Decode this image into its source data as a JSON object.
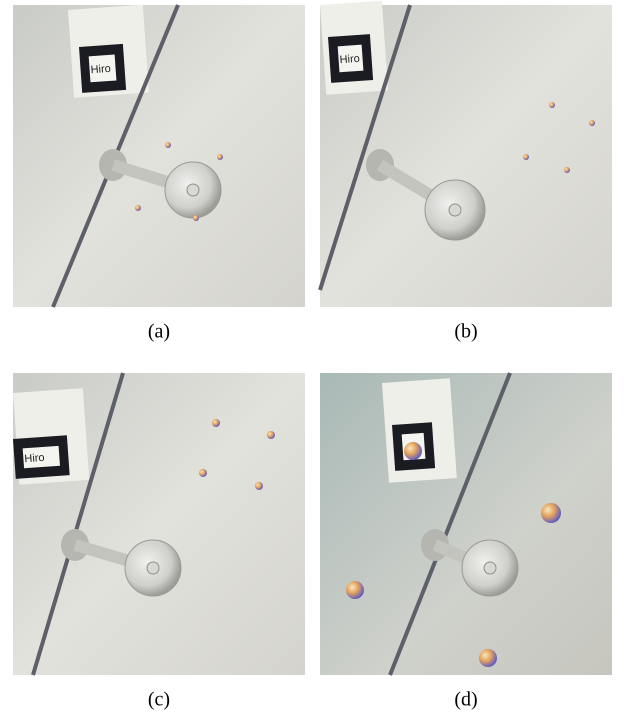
{
  "figure": {
    "panels": [
      {
        "label": "(a)",
        "marker_text": "Hiro"
      },
      {
        "label": "(b)",
        "marker_text": "Hiro"
      },
      {
        "label": "(c)",
        "marker_text": "Hiro"
      },
      {
        "label": "(d)"
      }
    ]
  }
}
